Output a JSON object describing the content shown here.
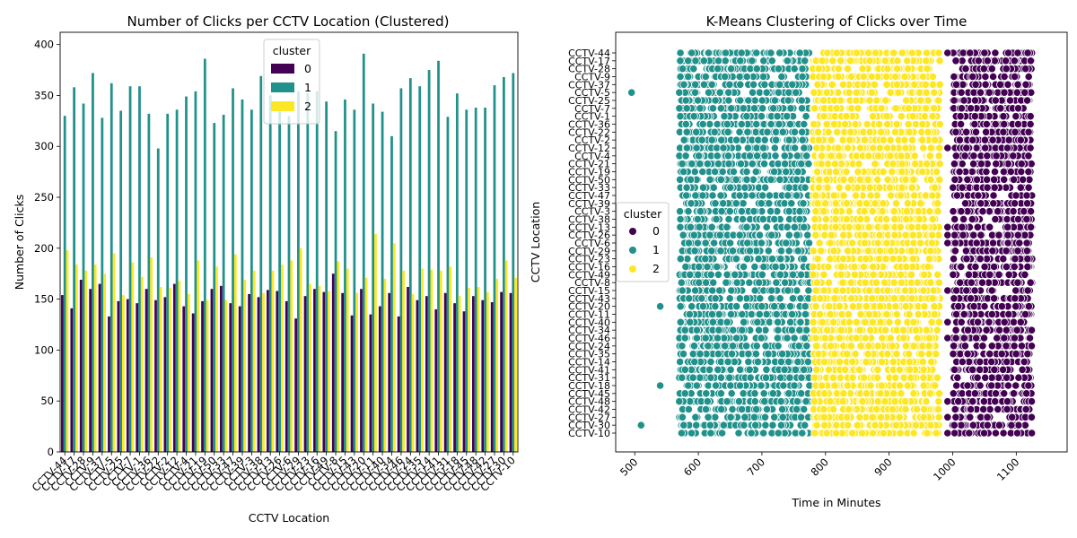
{
  "chart_data": [
    {
      "type": "bar",
      "title": "Number of Clicks per CCTV Location (Clustered)",
      "xlabel": "CCTV Location",
      "ylabel": "Number of Clicks",
      "ylim": [
        0,
        412
      ],
      "yticks": [
        0,
        50,
        100,
        150,
        200,
        250,
        300,
        350,
        400
      ],
      "legend": {
        "title": "cluster",
        "placement": "upper-center"
      },
      "categories": [
        "CCTV-44",
        "CCTV-17",
        "CCTV-28",
        "CCTV-9",
        "CCTV-37",
        "CCTV-5",
        "CCTV-25",
        "CCTV-7",
        "CCTV-1",
        "CCTV-36",
        "CCTV-22",
        "CCTV-2",
        "CCTV-12",
        "CCTV-4",
        "CCTV-21",
        "CCTV-19",
        "CCTV-50",
        "CCTV-33",
        "CCTV-47",
        "CCTV-39",
        "CCTV-3",
        "CCTV-38",
        "CCTV-13",
        "CCTV-26",
        "CCTV-6",
        "CCTV-29",
        "CCTV-23",
        "CCTV-16",
        "CCTV-49",
        "CCTV-8",
        "CCTV-15",
        "CCTV-43",
        "CCTV-20",
        "CCTV-11",
        "CCTV-40",
        "CCTV-34",
        "CCTV-46",
        "CCTV-24",
        "CCTV-35",
        "CCTV-14",
        "CCTV-41",
        "CCTV-31",
        "CCTV-18",
        "CCTV-45",
        "CCTV-48",
        "CCTV-42",
        "CCTV-27",
        "CCTV-30",
        "CCTV-10"
      ],
      "visible_tick_labels": [
        "CCTV-44",
        "CCTV-17",
        "CCTV-28",
        "CCTV-9",
        "CCTV-37",
        "CCTV-5",
        "CCTV-25",
        "CCTV-7",
        "CCTV-1",
        "CCTV-36",
        "CCTV-22",
        "CCTV-2",
        "CCTV-12",
        "CCTV-4",
        "CCTV-21",
        "CCTV-19",
        "CCTV-50",
        "CCTV-33",
        "CCTV-47",
        "CCTV-39",
        "CCTV-3",
        "CCTV-38",
        "CCTV-13",
        "CCTV-26",
        "CCTV-6",
        "CCTV-29",
        "CCTV-23",
        "CCTV-16",
        "CCTV-49",
        "CCTV-8",
        "CCTV-15",
        "CCTV-43",
        "CCTV-20",
        "CCTV-11",
        "CCTV-40",
        "CCTV-34",
        "CCTV-46",
        "CCTV-24",
        "CCTV-35",
        "CCTV-14",
        "CCTV-41",
        "CCTV-31",
        "CCTV-18",
        "CCTV-45",
        "CCTV-48",
        "CCTV-42",
        "CCTV-27",
        "CCTV-30",
        "CCTV-10"
      ],
      "series": [
        {
          "name": "0",
          "color": "#440154",
          "values": [
            154,
            141,
            169,
            160,
            165,
            133,
            148,
            150,
            146,
            160,
            149,
            152,
            165,
            143,
            136,
            148,
            160,
            163,
            146,
            143,
            155,
            152,
            159,
            158,
            148,
            131,
            153,
            160,
            157,
            175,
            156,
            134,
            160,
            135,
            143,
            156,
            133,
            162,
            149,
            153,
            140,
            156,
            146,
            138,
            153,
            149,
            147,
            157,
            156
          ]
        },
        {
          "name": "1",
          "color": "#21918c",
          "values": [
            330,
            358,
            342,
            372,
            328,
            362,
            335,
            359,
            359,
            332,
            298,
            332,
            336,
            349,
            354,
            386,
            323,
            331,
            357,
            346,
            336,
            369,
            350,
            344,
            330,
            354,
            352,
            354,
            344,
            315,
            346,
            336,
            391,
            342,
            334,
            310,
            357,
            367,
            359,
            375,
            384,
            329,
            352,
            336,
            338,
            338,
            360,
            368,
            372
          ]
        },
        {
          "name": "2",
          "color": "#fde725",
          "values": [
            198,
            184,
            178,
            184,
            175,
            195,
            154,
            186,
            172,
            191,
            162,
            161,
            168,
            155,
            188,
            149,
            182,
            149,
            194,
            169,
            178,
            156,
            178,
            184,
            188,
            200,
            165,
            163,
            158,
            187,
            180,
            156,
            171,
            214,
            170,
            205,
            178,
            155,
            180,
            179,
            178,
            182,
            153,
            161,
            162,
            157,
            170,
            188,
            171
          ]
        }
      ]
    },
    {
      "type": "scatter",
      "title": "K-Means Clustering of Clicks over Time",
      "xlabel": "Time in Minutes",
      "ylabel": "CCTV Location",
      "xlim": [
        470,
        1180
      ],
      "xticks": [
        500,
        600,
        700,
        800,
        900,
        1000,
        1100
      ],
      "legend": {
        "title": "cluster",
        "placement": "center-left"
      },
      "y_categories": [
        "CCTV-44",
        "CCTV-17",
        "CCTV-28",
        "CCTV-9",
        "CCTV-37",
        "CCTV-5",
        "CCTV-25",
        "CCTV-7",
        "CCTV-1",
        "CCTV-36",
        "CCTV-22",
        "CCTV-2",
        "CCTV-12",
        "CCTV-4",
        "CCTV-21",
        "CCTV-19",
        "CCTV-50",
        "CCTV-33",
        "CCTV-47",
        "CCTV-39",
        "CCTV-3",
        "CCTV-38",
        "CCTV-13",
        "CCTV-26",
        "CCTV-6",
        "CCTV-29",
        "CCTV-23",
        "CCTV-16",
        "CCTV-49",
        "CCTV-8",
        "CCTV-15",
        "CCTV-43",
        "CCTV-20",
        "CCTV-11",
        "CCTV-40",
        "CCTV-34",
        "CCTV-46",
        "CCTV-24",
        "CCTV-35",
        "CCTV-14",
        "CCTV-41",
        "CCTV-31",
        "CCTV-18",
        "CCTV-45",
        "CCTV-48",
        "CCTV-42",
        "CCTV-27",
        "CCTV-30",
        "CCTV-10"
      ],
      "clusters": [
        {
          "name": "0",
          "color": "#440154",
          "time_range": [
            1000,
            1125
          ]
        },
        {
          "name": "1",
          "color": "#21918c",
          "time_range": [
            570,
            775
          ]
        },
        {
          "name": "2",
          "color": "#fde725",
          "time_range": [
            780,
            980
          ]
        }
      ],
      "outliers": [
        {
          "cluster": "1",
          "x": 495,
          "y": "CCTV-5"
        },
        {
          "cluster": "1",
          "x": 540,
          "y": "CCTV-20"
        },
        {
          "cluster": "1",
          "x": 540,
          "y": "CCTV-18"
        },
        {
          "cluster": "1",
          "x": 510,
          "y": "CCTV-30"
        },
        {
          "cluster": "1",
          "x": 570,
          "y": "CCTV-5"
        },
        {
          "cluster": "1",
          "x": 570,
          "y": "CCTV-48"
        },
        {
          "cluster": "0",
          "x": 992,
          "y": "CCTV-44"
        },
        {
          "cluster": "0",
          "x": 1005,
          "y": "CCTV-17"
        },
        {
          "cluster": "0",
          "x": 1005,
          "y": "CCTV-22"
        },
        {
          "cluster": "0",
          "x": 992,
          "y": "CCTV-12"
        },
        {
          "cluster": "0",
          "x": 992,
          "y": "CCTV-13"
        },
        {
          "cluster": "0",
          "x": 992,
          "y": "CCTV-26"
        },
        {
          "cluster": "0",
          "x": 992,
          "y": "CCTV-6"
        },
        {
          "cluster": "0",
          "x": 992,
          "y": "CCTV-15"
        },
        {
          "cluster": "0",
          "x": 992,
          "y": "CCTV-40"
        },
        {
          "cluster": "0",
          "x": 992,
          "y": "CCTV-46"
        },
        {
          "cluster": "0",
          "x": 992,
          "y": "CCTV-48"
        },
        {
          "cluster": "0",
          "x": 992,
          "y": "CCTV-27"
        },
        {
          "cluster": "0",
          "x": 992,
          "y": "CCTV-10"
        },
        {
          "cluster": "0",
          "x": 1035,
          "y": "CCTV-1"
        },
        {
          "cluster": "2",
          "x": 935,
          "y": "CCTV-29"
        }
      ]
    }
  ]
}
